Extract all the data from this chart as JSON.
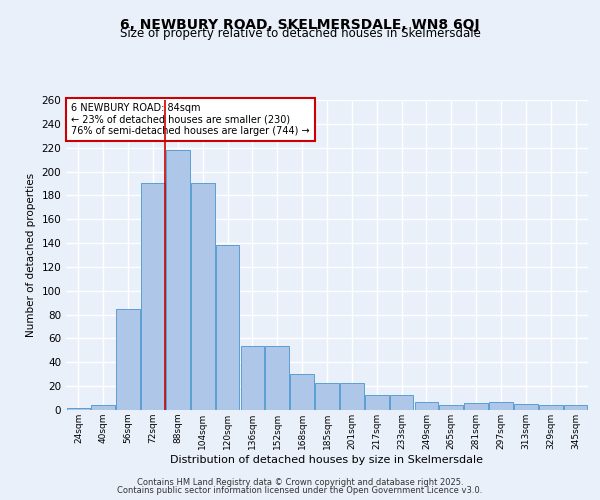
{
  "title1": "6, NEWBURY ROAD, SKELMERSDALE, WN8 6QJ",
  "title2": "Size of property relative to detached houses in Skelmersdale",
  "xlabel": "Distribution of detached houses by size in Skelmersdale",
  "ylabel": "Number of detached properties",
  "categories": [
    "24sqm",
    "40sqm",
    "56sqm",
    "72sqm",
    "88sqm",
    "104sqm",
    "120sqm",
    "136sqm",
    "152sqm",
    "168sqm",
    "185sqm",
    "201sqm",
    "217sqm",
    "233sqm",
    "249sqm",
    "265sqm",
    "281sqm",
    "297sqm",
    "313sqm",
    "329sqm",
    "345sqm"
  ],
  "values": [
    2,
    4,
    85,
    190,
    218,
    190,
    138,
    54,
    54,
    30,
    23,
    23,
    13,
    13,
    7,
    4,
    6,
    7,
    5,
    4,
    4
  ],
  "bar_color": "#aec6e8",
  "bar_edge_color": "#5a9fd4",
  "bg_color": "#eaf0fa",
  "grid_color": "#ffffff",
  "annotation_box_text": "6 NEWBURY ROAD: 84sqm\n← 23% of detached houses are smaller (230)\n76% of semi-detached houses are larger (744) →",
  "vline_index": 4,
  "vline_color": "#cc0000",
  "ylim": [
    0,
    260
  ],
  "yticks": [
    0,
    20,
    40,
    60,
    80,
    100,
    120,
    140,
    160,
    180,
    200,
    220,
    240,
    260
  ],
  "footer1": "Contains HM Land Registry data © Crown copyright and database right 2025.",
  "footer2": "Contains public sector information licensed under the Open Government Licence v3.0."
}
